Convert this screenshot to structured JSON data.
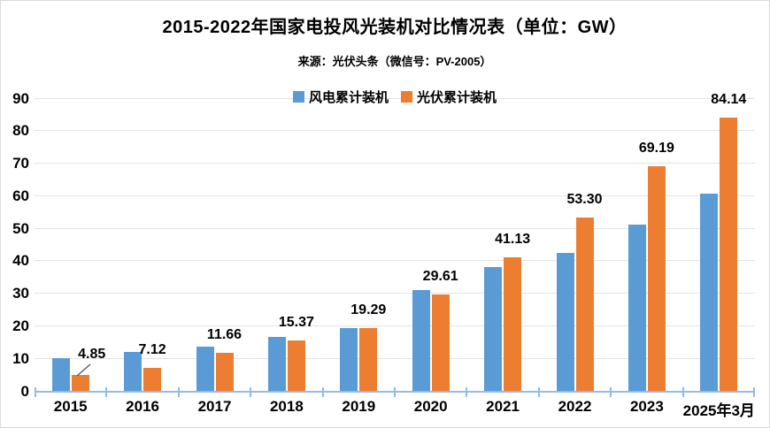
{
  "chart_data": {
    "type": "bar",
    "title": "2015-2022年国家电投风光装机对比情况表（单位：GW）",
    "subtitle": "来源：光伏头条（微信号：PV-2005）",
    "unit": "GW",
    "categories": [
      "2015",
      "2016",
      "2017",
      "2018",
      "2019",
      "2020",
      "2021",
      "2022",
      "2023",
      "2025年3月"
    ],
    "series": [
      {
        "name": "风电累计装机",
        "color": "#5B9BD5",
        "data_labels": false,
        "values": [
          10.0,
          11.9,
          13.7,
          16.5,
          19.3,
          31.0,
          38.2,
          42.3,
          51.0,
          60.7
        ]
      },
      {
        "name": "光伏累计装机",
        "color": "#ED7D31",
        "data_labels": true,
        "values": [
          4.85,
          7.12,
          11.66,
          15.37,
          19.29,
          29.61,
          41.13,
          53.3,
          69.19,
          84.14
        ],
        "label_texts": [
          "4.85",
          "7.12",
          "11.66",
          "15.37",
          "19.29",
          "29.61",
          "41.13",
          "53.30",
          "69.19",
          "84.14"
        ]
      }
    ],
    "ylim": [
      0,
      90
    ],
    "yticks": [
      0,
      10,
      20,
      30,
      40,
      50,
      60,
      70,
      80,
      90
    ],
    "grid": true,
    "legend_position": "top-center",
    "first_solar_label_has_leader_line": true
  },
  "colors": {
    "wind_bar": "#5B9BD5",
    "solar_bar": "#ED7D31",
    "axis": "#93BBE3",
    "gridline": "#E3E3E3",
    "leader_line": "#595959",
    "text": "#000000",
    "frame_border": "#D9D9D9",
    "background": "#FFFFFF"
  }
}
